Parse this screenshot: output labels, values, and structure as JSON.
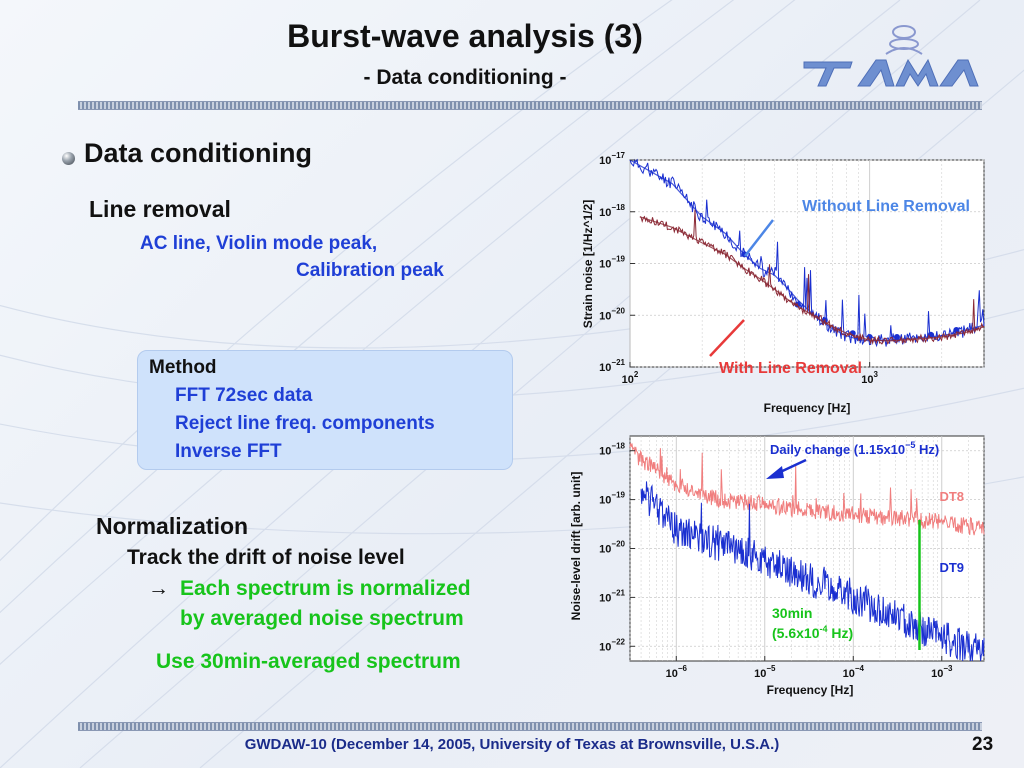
{
  "slide": {
    "title": "Burst-wave analysis (3)",
    "subtitle": "- Data conditioning -",
    "logo_text": "TAMA",
    "page_number": "23",
    "footer": "GWDAW-10 (December 14, 2005, University of Texas at Brownsville, U.S.A.)"
  },
  "content": {
    "bullet": "Data conditioning",
    "line_removal": {
      "heading": "Line removal",
      "line1": "AC line, Violin mode peak,",
      "line2": "Calibration peak"
    },
    "method": {
      "title": "Method",
      "items": [
        "FFT 72sec data",
        "Reject line freq. components",
        "Inverse FFT"
      ]
    },
    "normalization": {
      "heading": "Normalization",
      "line1": "Track the drift of noise level",
      "arrow": "→",
      "line2": "Each spectrum is normalized",
      "line3": "by averaged noise spectrum",
      "line4": "Use 30min-averaged spectrum"
    }
  },
  "chart_data": [
    {
      "type": "line",
      "xscale": "log",
      "yscale": "log",
      "xlim": [
        100,
        3000
      ],
      "ylim": [
        1e-21,
        1e-17
      ],
      "xlabel": "Frequency [Hz]",
      "ylabel": "Strain noise [1/Hz^1/2]",
      "xticks": [
        "10^2",
        "10^3"
      ],
      "yticks": [
        "10^-17",
        "10^-18",
        "10^-19",
        "10^-20",
        "10^-21"
      ],
      "series": [
        {
          "name": "Without Line Removal",
          "color": "#1a2fd0",
          "x": [
            100,
            150,
            200,
            250,
            300,
            350,
            400,
            450,
            500,
            600,
            700,
            800,
            900,
            1000,
            1200,
            1500,
            2000,
            2500,
            3000
          ],
          "y": [
            1e-17,
            3.5e-18,
            8e-19,
            3.8e-19,
            1.5e-19,
            8e-20,
            6e-20,
            3.5e-20,
            2e-20,
            9e-21,
            5.5e-21,
            4e-21,
            3.4e-21,
            3.2e-21,
            3.3e-21,
            3.6e-21,
            4e-21,
            5e-21,
            6.5e-21
          ],
          "markers_x": [
            300,
            500,
            650,
            850,
            1000,
            1300,
            1800,
            2300
          ],
          "markers_y": [
            1.5e-19,
            1.6e-20,
            8e-21,
            4.5e-21,
            3.8e-21,
            3.8e-21,
            4.2e-21,
            5.2e-21
          ]
        },
        {
          "name": "With Line Removal",
          "color": "#8b2a36",
          "x": [
            110,
            150,
            200,
            250,
            300,
            350,
            400,
            450,
            500,
            600,
            700,
            800,
            900,
            1000,
            1200,
            1500,
            2000,
            2500,
            3000
          ],
          "y": [
            8e-19,
            5e-19,
            2.5e-19,
            1.5e-19,
            8e-20,
            5e-20,
            3.2e-20,
            2.1e-20,
            1.5e-20,
            9e-21,
            6e-21,
            4.5e-21,
            3.8e-21,
            3.3e-21,
            3.2e-21,
            3.4e-21,
            3.8e-21,
            4.6e-21,
            6e-21
          ]
        }
      ],
      "annotations": [
        "Without Line Removal",
        "With Line Removal"
      ]
    },
    {
      "type": "line",
      "xscale": "log",
      "yscale": "log",
      "xlim": [
        3e-07,
        0.003
      ],
      "ylim": [
        5e-23,
        2e-18
      ],
      "xlabel": "Frequency [Hz]",
      "ylabel": "Noise-level drift [arb. unit]",
      "xticks": [
        "10^-6",
        "10^-5",
        "10^-4",
        "10^-3"
      ],
      "yticks": [
        "10^-18",
        "10^-19",
        "10^-20",
        "10^-21",
        "10^-22"
      ],
      "series": [
        {
          "name": "DT8",
          "color": "#f07e7e",
          "x": [
            3e-07,
            1e-06,
            3e-06,
            1e-05,
            3e-05,
            0.0001,
            0.0003,
            0.001,
            0.003
          ],
          "y": [
            1e-18,
            2e-19,
            1e-19,
            8e-20,
            6e-20,
            5e-20,
            4.2e-20,
            3.5e-20,
            2.5e-20
          ]
        },
        {
          "name": "DT9",
          "color": "#1a2fd0",
          "x": [
            4e-07,
            1e-06,
            3e-06,
            1e-05,
            3e-05,
            0.0001,
            0.0003,
            0.001,
            0.003
          ],
          "y": [
            1.5e-19,
            2.5e-20,
            1.2e-20,
            6e-21,
            2.5e-21,
            1e-21,
            4e-22,
            1.5e-22,
            8e-23
          ]
        }
      ],
      "annotations": [
        {
          "text": "Daily change (1.15x10",
          "sup": "−5",
          "tail": " Hz)"
        },
        {
          "text": "30min"
        },
        {
          "text": "(5.6x10",
          "sup": "-4",
          "tail": " Hz)"
        }
      ],
      "marker_line_x": 0.00056
    }
  ],
  "colors": {
    "title_blue": "#1f3fd6",
    "green": "#17c41b",
    "footer_blue": "#1b2c8a",
    "method_box": "#cfe2fb"
  }
}
